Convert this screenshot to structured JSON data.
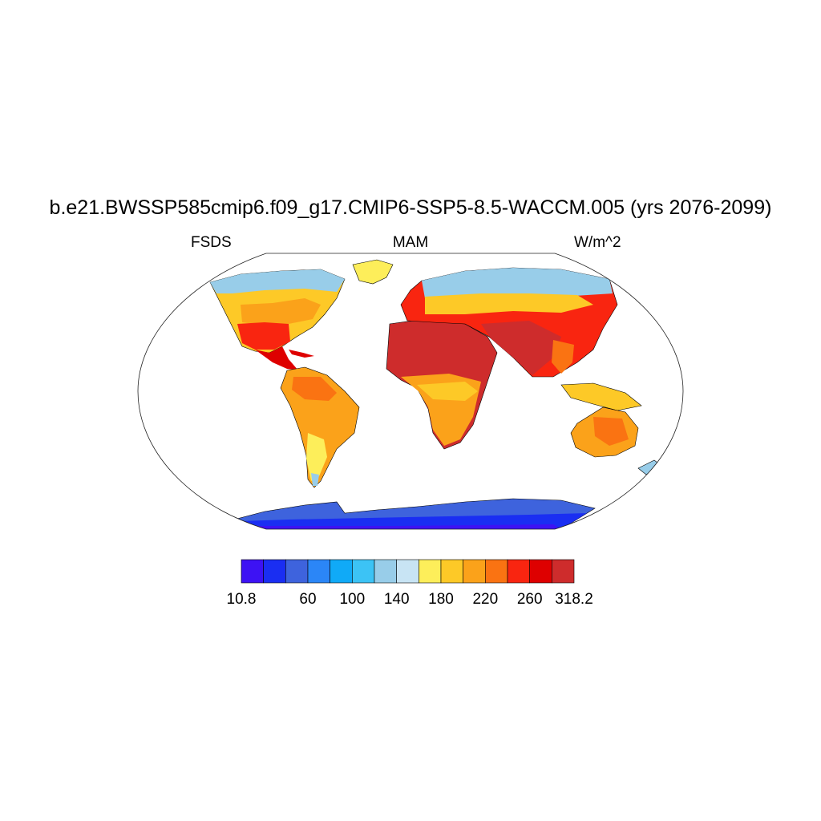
{
  "title": "b.e21.BWSSP585cmip6.f09_g17.CMIP6-SSP5-8.5-WACCM.005 (yrs 2076-2099)",
  "subtitle_left": "FSDS",
  "subtitle_center": "MAM",
  "subtitle_right": "W/m^2",
  "colorbar": {
    "colors": [
      "#3d12f4",
      "#1a2ef2",
      "#3e63dd",
      "#2b86f7",
      "#10aaf7",
      "#3cc3f5",
      "#98cde9",
      "#c8e4f4",
      "#fdee5a",
      "#fdc927",
      "#fba21a",
      "#fa7312",
      "#f92510",
      "#de0000",
      "#ce2c2c"
    ],
    "tick_labels": [
      "10.8",
      "60",
      "100",
      "140",
      "180",
      "220",
      "260",
      "318.2"
    ]
  }
}
